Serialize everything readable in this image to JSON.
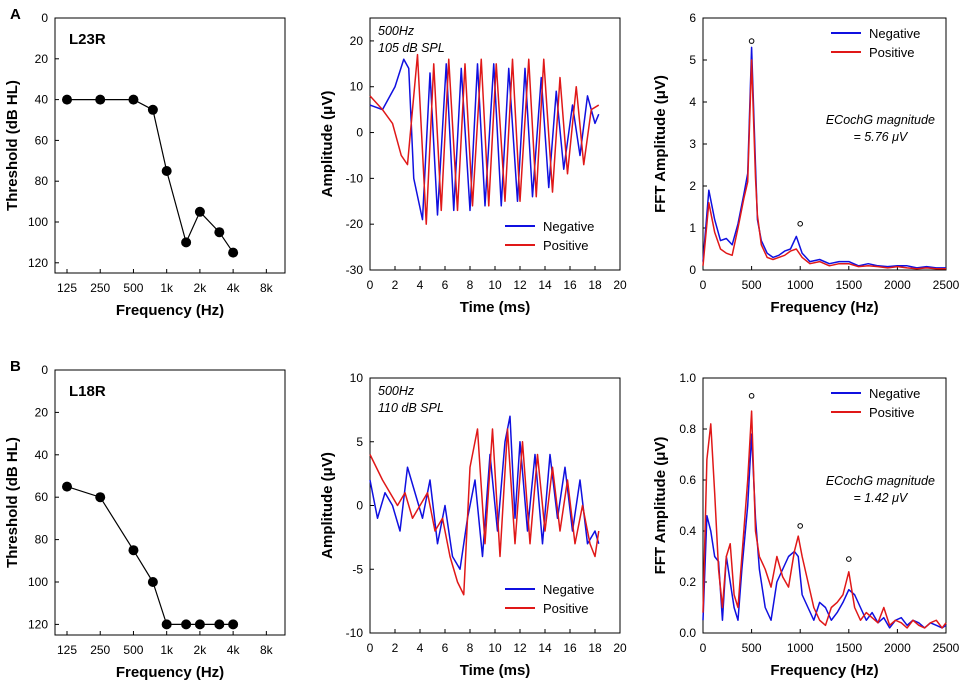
{
  "panel_labels": [
    "A",
    "B"
  ],
  "colors": {
    "negative": "#1010e0",
    "positive": "#e01818",
    "audiogram": "#000000"
  },
  "chart_data": [
    {
      "type": "line",
      "id": "A-audiogram",
      "title": "L23R",
      "xlabel": "Frequency (Hz)",
      "ylabel": "Threshold (dB HL)",
      "xticks": [
        "125",
        "250",
        "500",
        "1k",
        "2k",
        "4k",
        "8k"
      ],
      "x": [
        125,
        250,
        500,
        750,
        1000,
        1500,
        2000,
        3000,
        4000
      ],
      "y": [
        40,
        40,
        40,
        45,
        75,
        110,
        95,
        105,
        115
      ],
      "ylim": [
        0,
        125
      ],
      "y_inverted": true,
      "yticks": [
        0,
        20,
        40,
        60,
        80,
        100,
        120
      ]
    },
    {
      "type": "line",
      "id": "A-waveform",
      "annotation_lines": [
        "500Hz",
        "105 dB SPL"
      ],
      "xlabel": "Time (ms)",
      "ylabel": "Amplitude (μV)",
      "xlim": [
        0,
        20
      ],
      "ylim": [
        -30,
        25
      ],
      "xticks": [
        0,
        2,
        4,
        6,
        8,
        10,
        12,
        14,
        16,
        18,
        20
      ],
      "yticks": [
        -30,
        -20,
        -10,
        0,
        10,
        20
      ],
      "legend": {
        "position": "bottom-right",
        "entries": [
          "Negative",
          "Positive"
        ]
      },
      "series": [
        {
          "name": "Negative",
          "x": [
            0,
            1,
            2,
            2.7,
            3.1,
            3.5,
            4.2,
            4.8,
            5.4,
            6.1,
            6.7,
            7.3,
            8.0,
            8.6,
            9.2,
            9.9,
            10.5,
            11.1,
            11.8,
            12.4,
            13.0,
            13.7,
            14.3,
            14.9,
            15.5,
            16.2,
            16.8,
            17.4,
            18.0,
            18.3
          ],
          "y": [
            6,
            5,
            10,
            16,
            14,
            -10,
            -19,
            13,
            -18,
            15,
            -17,
            14,
            -17,
            15,
            -16,
            15,
            -16,
            14,
            -15,
            14,
            -14,
            12,
            -12,
            9,
            -8,
            6,
            -5,
            8,
            2,
            4
          ]
        },
        {
          "name": "Positive",
          "x": [
            0,
            1,
            1.8,
            2.5,
            3.0,
            3.8,
            4.5,
            5.1,
            5.7,
            6.3,
            7.0,
            7.6,
            8.2,
            8.9,
            9.5,
            10.1,
            10.8,
            11.4,
            12.0,
            12.7,
            13.3,
            13.9,
            14.6,
            15.2,
            15.8,
            16.5,
            17.1,
            17.7,
            18.3
          ],
          "y": [
            8,
            5,
            2,
            -5,
            -7,
            17,
            -20,
            15,
            -17,
            16,
            -17,
            15,
            -16,
            16,
            -16,
            15,
            -15,
            16,
            -15,
            16,
            -14,
            16,
            -13,
            12,
            -9,
            10,
            -7,
            5,
            6
          ]
        }
      ]
    },
    {
      "type": "line",
      "id": "A-fft",
      "xlabel": "Frequency (Hz)",
      "ylabel": "FFT Amplitude (μV)",
      "xlim": [
        0,
        2500
      ],
      "ylim": [
        0,
        6
      ],
      "xticks": [
        0,
        500,
        1000,
        1500,
        2000,
        2500
      ],
      "yticks": [
        0,
        1,
        2,
        3,
        4,
        5,
        6
      ],
      "annotation_lines": [
        "ECochG magnitude",
        "= 5.76 μV"
      ],
      "peak_markers": [
        {
          "x": 500,
          "y": 5.45
        },
        {
          "x": 1000,
          "y": 1.1
        }
      ],
      "legend": {
        "position": "top-right",
        "entries": [
          "Negative",
          "Positive"
        ]
      },
      "series": [
        {
          "name": "Negative",
          "x": [
            0,
            60,
            120,
            180,
            240,
            300,
            360,
            420,
            460,
            500,
            540,
            560,
            600,
            660,
            720,
            780,
            840,
            900,
            960,
            1020,
            1100,
            1200,
            1300,
            1400,
            1500,
            1600,
            1700,
            1800,
            1900,
            2000,
            2100,
            2200,
            2300,
            2400,
            2500
          ],
          "y": [
            0.2,
            1.9,
            1.2,
            0.7,
            0.75,
            0.6,
            1.1,
            1.8,
            2.3,
            5.3,
            2.5,
            1.2,
            0.7,
            0.4,
            0.3,
            0.35,
            0.45,
            0.5,
            0.8,
            0.4,
            0.2,
            0.25,
            0.15,
            0.2,
            0.2,
            0.1,
            0.15,
            0.1,
            0.08,
            0.1,
            0.1,
            0.05,
            0.08,
            0.05,
            0.05
          ]
        },
        {
          "name": "Positive",
          "x": [
            0,
            60,
            120,
            180,
            240,
            300,
            360,
            420,
            460,
            500,
            540,
            560,
            600,
            660,
            720,
            780,
            840,
            900,
            960,
            1020,
            1100,
            1200,
            1300,
            1400,
            1500,
            1600,
            1700,
            1800,
            1900,
            2000,
            2100,
            2200,
            2300,
            2400,
            2500
          ],
          "y": [
            0.1,
            1.6,
            0.9,
            0.5,
            0.4,
            0.35,
            1.0,
            1.7,
            2.1,
            5.0,
            2.2,
            1.3,
            0.6,
            0.3,
            0.25,
            0.3,
            0.35,
            0.45,
            0.5,
            0.3,
            0.15,
            0.2,
            0.1,
            0.15,
            0.15,
            0.08,
            0.1,
            0.08,
            0.05,
            0.08,
            0.05,
            0.03,
            0.05,
            0.03,
            0.03
          ]
        }
      ]
    },
    {
      "type": "line",
      "id": "B-audiogram",
      "title": "L18R",
      "xlabel": "Frequency (Hz)",
      "ylabel": "Threshold (dB HL)",
      "xticks": [
        "125",
        "250",
        "500",
        "1k",
        "2k",
        "4k",
        "8k"
      ],
      "x": [
        125,
        250,
        500,
        750,
        1000,
        1500,
        2000,
        3000,
        4000
      ],
      "y": [
        55,
        60,
        85,
        100,
        120,
        120,
        120,
        120,
        120
      ],
      "ylim": [
        0,
        125
      ],
      "y_inverted": true,
      "yticks": [
        0,
        20,
        40,
        60,
        80,
        100,
        120
      ]
    },
    {
      "type": "line",
      "id": "B-waveform",
      "annotation_lines": [
        "500Hz",
        "110 dB SPL"
      ],
      "xlabel": "Time (ms)",
      "ylabel": "Amplitude (μV)",
      "xlim": [
        0,
        20
      ],
      "ylim": [
        -10,
        10
      ],
      "xticks": [
        0,
        2,
        4,
        6,
        8,
        10,
        12,
        14,
        16,
        18,
        20
      ],
      "yticks": [
        -10,
        -5,
        0,
        5,
        10
      ],
      "legend": {
        "position": "bottom-right",
        "entries": [
          "Negative",
          "Positive"
        ]
      },
      "series": [
        {
          "name": "Negative",
          "x": [
            0,
            0.6,
            1.2,
            1.8,
            2.4,
            3.0,
            3.6,
            4.2,
            4.8,
            5.4,
            6.0,
            6.6,
            7.2,
            7.8,
            8.4,
            9.0,
            9.6,
            10.2,
            10.8,
            11.2,
            11.6,
            12.0,
            12.6,
            13.2,
            13.8,
            14.4,
            15.0,
            15.6,
            16.2,
            16.8,
            17.4,
            18.0,
            18.3
          ],
          "y": [
            2,
            -1,
            1,
            0,
            -2,
            3,
            1,
            -1,
            2,
            -3,
            0,
            -4,
            -5,
            -1,
            2,
            -4,
            4,
            -2,
            5,
            7,
            -1,
            5,
            -2,
            4,
            -3,
            4,
            -1,
            3,
            -2,
            2,
            -3,
            -2,
            -3
          ]
        },
        {
          "name": "Positive",
          "x": [
            0,
            0.5,
            1.0,
            1.6,
            2.2,
            2.8,
            3.4,
            4.0,
            4.6,
            5.2,
            5.8,
            6.4,
            7.0,
            7.5,
            8.0,
            8.6,
            9.2,
            9.8,
            10.4,
            11.0,
            11.6,
            12.2,
            12.8,
            13.4,
            14.0,
            14.6,
            15.2,
            15.8,
            16.4,
            17.0,
            17.6,
            18.0,
            18.3
          ],
          "y": [
            4,
            3,
            2,
            1,
            0,
            1,
            -1,
            0,
            1,
            -2,
            -1,
            -4,
            -6,
            -7,
            3,
            6,
            -3,
            6,
            -4,
            6,
            -3,
            5,
            -3,
            4,
            -2,
            3,
            -2,
            2,
            -3,
            0,
            -3,
            -4,
            -2
          ]
        }
      ]
    },
    {
      "type": "line",
      "id": "B-fft",
      "xlabel": "Frequency (Hz)",
      "ylabel": "FFT Amplitude (μV)",
      "xlim": [
        0,
        2500
      ],
      "ylim": [
        0,
        1.0
      ],
      "xticks": [
        0,
        500,
        1000,
        1500,
        2000,
        2500
      ],
      "yticks": [
        0.0,
        0.2,
        0.4,
        0.6,
        0.8,
        1.0
      ],
      "annotation_lines": [
        "ECochG magnitude",
        "= 1.42 μV"
      ],
      "peak_markers": [
        {
          "x": 500,
          "y": 0.93
        },
        {
          "x": 1000,
          "y": 0.42
        },
        {
          "x": 1500,
          "y": 0.29
        }
      ],
      "legend": {
        "position": "top-right",
        "entries": [
          "Negative",
          "Positive"
        ]
      },
      "series": [
        {
          "name": "Negative",
          "x": [
            0,
            40,
            80,
            120,
            160,
            200,
            240,
            280,
            320,
            360,
            400,
            460,
            500,
            540,
            580,
            640,
            700,
            760,
            820,
            880,
            940,
            980,
            1020,
            1080,
            1140,
            1200,
            1260,
            1320,
            1380,
            1440,
            1500,
            1560,
            1620,
            1680,
            1740,
            1800,
            1860,
            1920,
            1980,
            2040,
            2100,
            2160,
            2220,
            2280,
            2340,
            2400,
            2460,
            2500
          ],
          "y": [
            0.05,
            0.46,
            0.4,
            0.3,
            0.28,
            0.05,
            0.3,
            0.2,
            0.1,
            0.05,
            0.25,
            0.5,
            0.78,
            0.45,
            0.25,
            0.1,
            0.05,
            0.2,
            0.25,
            0.3,
            0.32,
            0.3,
            0.15,
            0.1,
            0.05,
            0.12,
            0.1,
            0.05,
            0.08,
            0.12,
            0.17,
            0.15,
            0.1,
            0.05,
            0.08,
            0.04,
            0.06,
            0.02,
            0.05,
            0.06,
            0.03,
            0.05,
            0.04,
            0.02,
            0.04,
            0.03,
            0.02,
            0.03
          ]
        },
        {
          "name": "Positive",
          "x": [
            0,
            40,
            80,
            120,
            160,
            200,
            240,
            280,
            320,
            360,
            400,
            460,
            500,
            540,
            580,
            640,
            700,
            760,
            820,
            880,
            940,
            980,
            1020,
            1080,
            1140,
            1200,
            1260,
            1320,
            1380,
            1440,
            1500,
            1560,
            1620,
            1680,
            1740,
            1800,
            1860,
            1920,
            1980,
            2040,
            2100,
            2160,
            2220,
            2280,
            2340,
            2400,
            2460,
            2500
          ],
          "y": [
            0.08,
            0.68,
            0.82,
            0.55,
            0.25,
            0.1,
            0.3,
            0.35,
            0.15,
            0.1,
            0.3,
            0.6,
            0.87,
            0.4,
            0.3,
            0.25,
            0.18,
            0.3,
            0.22,
            0.18,
            0.32,
            0.38,
            0.3,
            0.2,
            0.1,
            0.05,
            0.03,
            0.1,
            0.12,
            0.15,
            0.24,
            0.1,
            0.05,
            0.08,
            0.06,
            0.04,
            0.1,
            0.03,
            0.05,
            0.04,
            0.02,
            0.05,
            0.03,
            0.02,
            0.04,
            0.05,
            0.02,
            0.04
          ]
        }
      ]
    }
  ]
}
